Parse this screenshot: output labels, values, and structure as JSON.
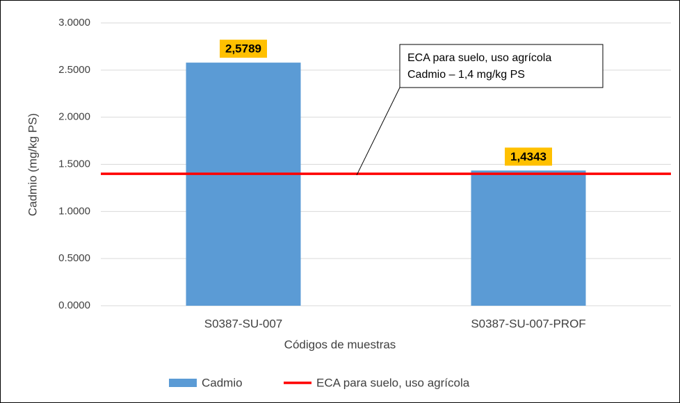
{
  "chart_data": {
    "type": "bar",
    "x_label": "Códigos de muestras",
    "y_label": "Cadmio (mg/kg PS)",
    "categories": [
      "S0387-SU-007",
      "S0387-SU-007-PROF"
    ],
    "series": [
      {
        "name": "Cadmio",
        "color": "#5b9bd5",
        "type": "bar",
        "values": [
          2.5789,
          1.4343
        ],
        "value_labels": [
          "2,5789",
          "1,4343"
        ]
      },
      {
        "name": "ECA para suelo, uso agrícola",
        "color": "#ff0000",
        "type": "line",
        "values": [
          1.4,
          1.4
        ]
      }
    ],
    "annotation": [
      "ECA para suelo, uso agrícola",
      "Cadmio – 1,4 mg/kg PS"
    ],
    "ylim": [
      0,
      3
    ],
    "yticks": [
      {
        "value": 0,
        "label": "0.0000"
      },
      {
        "value": 0.5,
        "label": "0.5000"
      },
      {
        "value": 1,
        "label": "1.0000"
      },
      {
        "value": 1.5,
        "label": "1.5000"
      },
      {
        "value": 2,
        "label": "2.0000"
      },
      {
        "value": 2.5,
        "label": "2.5000"
      },
      {
        "value": 3,
        "label": "3.0000"
      }
    ],
    "grid": true,
    "legend": "bottom"
  }
}
